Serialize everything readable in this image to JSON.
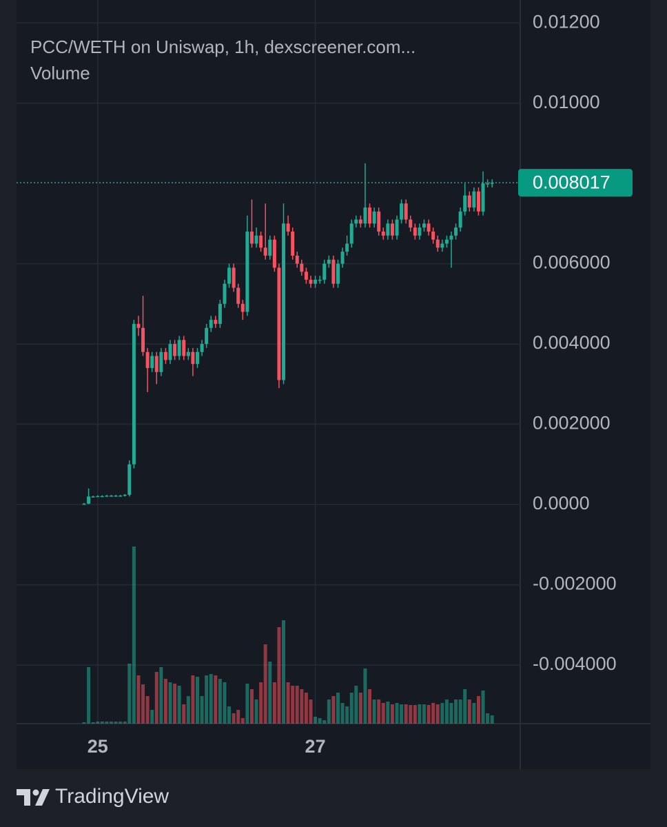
{
  "chart_data": {
    "type": "candlestick",
    "title": "PCC/WETH on Uniswap, 1h, dexscreener.com...",
    "subtitle": "Volume",
    "categories": [
      null,
      null,
      null,
      "25",
      null,
      null,
      null,
      null,
      null,
      null,
      null,
      null,
      null,
      null,
      null,
      null,
      null,
      null,
      null,
      null,
      null,
      null,
      null,
      null,
      null,
      null,
      null,
      null,
      null,
      null,
      null,
      null,
      null,
      null,
      null,
      null,
      null,
      null,
      null,
      null,
      null,
      null,
      null,
      null,
      null,
      null,
      null,
      null,
      null,
      null,
      null,
      "27",
      null,
      null,
      null,
      null,
      null,
      null,
      null,
      null,
      null,
      null,
      null,
      null,
      null,
      null,
      null,
      null,
      null,
      null,
      null,
      null,
      null,
      null,
      null,
      null,
      null,
      null,
      null,
      null,
      null,
      null,
      null,
      null,
      null,
      null,
      null,
      null,
      null,
      null,
      null
    ],
    "open": [
      2e-05,
      2e-05,
      0.0002,
      0.0002,
      0.00021,
      0.00021,
      0.00022,
      0.00022,
      0.00022,
      0.00022,
      0.00024,
      0.001,
      0.0045,
      0.0044,
      0.0038,
      0.0034,
      0.0037,
      0.0033,
      0.0038,
      0.0036,
      0.004,
      0.0037,
      0.0041,
      0.0037,
      0.0038,
      0.0035,
      0.0038,
      0.004,
      0.0044,
      0.0046,
      0.0045,
      0.005,
      0.0055,
      0.0059,
      0.0054,
      0.005,
      0.0048,
      0.0068,
      0.0065,
      0.0067,
      0.0064,
      0.0062,
      0.0066,
      0.0059,
      0.0031,
      0.007,
      0.0068,
      0.0062,
      0.006,
      0.0058,
      0.0056,
      0.0055,
      0.0056,
      0.0056,
      0.006,
      0.0061,
      0.0055,
      0.006,
      0.0063,
      0.0065,
      0.007,
      0.0071,
      0.007,
      0.0074,
      0.007,
      0.0073,
      0.0068,
      0.0067,
      0.007,
      0.0067,
      0.0071,
      0.0075,
      0.0071,
      0.0069,
      0.0067,
      0.0069,
      0.007,
      0.0068,
      0.0066,
      0.0064,
      0.0065,
      0.0066,
      0.0067,
      0.0069,
      0.0073,
      0.0077,
      0.0074,
      0.0078,
      0.0073,
      0.008,
      0.008
    ],
    "high": [
      4e-05,
      0.0004,
      0.00022,
      0.00023,
      0.00023,
      0.00024,
      0.00024,
      0.00024,
      0.00024,
      0.00026,
      0.0011,
      0.0046,
      0.0047,
      0.0052,
      0.0039,
      0.0038,
      0.0038,
      0.0039,
      0.0039,
      0.0041,
      0.0041,
      0.0042,
      0.0042,
      0.0039,
      0.0039,
      0.0039,
      0.0041,
      0.0045,
      0.0047,
      0.0047,
      0.0051,
      0.0056,
      0.006,
      0.006,
      0.0055,
      0.0051,
      0.0072,
      0.0076,
      0.0069,
      0.0068,
      0.0075,
      0.0067,
      0.0067,
      0.006,
      0.0075,
      0.0072,
      0.0069,
      0.0063,
      0.0061,
      0.0059,
      0.0057,
      0.0057,
      0.0057,
      0.0061,
      0.0062,
      0.0062,
      0.0061,
      0.0064,
      0.0067,
      0.0071,
      0.0072,
      0.0072,
      0.0085,
      0.0075,
      0.0074,
      0.0074,
      0.0069,
      0.0071,
      0.0071,
      0.0072,
      0.0076,
      0.0076,
      0.0072,
      0.007,
      0.007,
      0.0071,
      0.0071,
      0.0069,
      0.0067,
      0.0066,
      0.0067,
      0.0068,
      0.007,
      0.0074,
      0.008,
      0.0078,
      0.0079,
      0.0079,
      0.0083,
      0.0081,
      0.0081
    ],
    "low": [
      0,
      1e-05,
      0.00018,
      0.00019,
      0.00019,
      0.0002,
      0.0002,
      0.0002,
      0.0002,
      0.0002,
      0.0002,
      0.0009,
      0.0042,
      0.0037,
      0.0028,
      0.0033,
      0.003,
      0.0032,
      0.0035,
      0.0035,
      0.0036,
      0.0036,
      0.0036,
      0.0036,
      0.0032,
      0.0034,
      0.0037,
      0.0039,
      0.0043,
      0.0044,
      0.0044,
      0.0049,
      0.0054,
      0.0053,
      0.0049,
      0.0046,
      0.0047,
      0.0064,
      0.0064,
      0.0063,
      0.0061,
      0.0061,
      0.0058,
      0.0029,
      0.003,
      0.0067,
      0.0061,
      0.0059,
      0.0057,
      0.0055,
      0.0054,
      0.0054,
      0.0055,
      0.0055,
      0.0059,
      0.0054,
      0.0054,
      0.0059,
      0.0062,
      0.0064,
      0.0069,
      0.0069,
      0.0069,
      0.0069,
      0.0069,
      0.0067,
      0.0066,
      0.0066,
      0.0066,
      0.0066,
      0.007,
      0.007,
      0.0068,
      0.0066,
      0.0066,
      0.0068,
      0.0067,
      0.0065,
      0.0063,
      0.0063,
      0.0064,
      0.0059,
      0.0066,
      0.0068,
      0.0072,
      0.0073,
      0.0073,
      0.0072,
      0.0072,
      0.0079,
      0.0079
    ],
    "close": [
      2e-05,
      0.0002,
      0.0002,
      0.00021,
      0.00021,
      0.00022,
      0.00022,
      0.00022,
      0.00022,
      0.00024,
      0.001,
      0.0045,
      0.0044,
      0.0038,
      0.0034,
      0.0037,
      0.0033,
      0.0038,
      0.0036,
      0.004,
      0.0037,
      0.0041,
      0.0037,
      0.0038,
      0.0035,
      0.0038,
      0.004,
      0.0044,
      0.0046,
      0.0045,
      0.005,
      0.0055,
      0.0059,
      0.0054,
      0.005,
      0.0048,
      0.0068,
      0.0065,
      0.0067,
      0.0064,
      0.0062,
      0.0066,
      0.0059,
      0.0031,
      0.007,
      0.0068,
      0.0062,
      0.006,
      0.0058,
      0.0056,
      0.0055,
      0.0056,
      0.0056,
      0.006,
      0.0061,
      0.0055,
      0.006,
      0.0063,
      0.0065,
      0.007,
      0.0071,
      0.007,
      0.0074,
      0.007,
      0.0073,
      0.0068,
      0.0067,
      0.007,
      0.0067,
      0.0071,
      0.0075,
      0.0071,
      0.0069,
      0.0067,
      0.0069,
      0.007,
      0.0068,
      0.0066,
      0.0064,
      0.0065,
      0.0066,
      0.0067,
      0.0069,
      0.0073,
      0.0077,
      0.0074,
      0.0078,
      0.0073,
      0.008,
      0.008,
      0.008017
    ],
    "volume": [
      2,
      82,
      2,
      3,
      3,
      3,
      3,
      3,
      3,
      3,
      87,
      257,
      70,
      57,
      40,
      20,
      75,
      82,
      65,
      60,
      58,
      55,
      28,
      40,
      70,
      68,
      40,
      70,
      72,
      70,
      65,
      60,
      25,
      15,
      20,
      8,
      58,
      50,
      35,
      60,
      115,
      90,
      60,
      140,
      150,
      60,
      55,
      55,
      50,
      45,
      35,
      10,
      8,
      5,
      35,
      40,
      45,
      30,
      25,
      45,
      55,
      45,
      80,
      50,
      35,
      35,
      30,
      32,
      28,
      30,
      28,
      28,
      27,
      27,
      28,
      28,
      27,
      30,
      28,
      30,
      35,
      30,
      35,
      35,
      50,
      35,
      30,
      40,
      48,
      15,
      12
    ],
    "up_color": "#22ab94",
    "down_color": "#f7525f",
    "ylim": [
      -0.00546,
      0.01257
    ],
    "yticks": [
      {
        "value": 0.012,
        "label": "0.01200"
      },
      {
        "value": 0.01,
        "label": "0.01000"
      },
      {
        "value": 0.006,
        "label": "0.006000"
      },
      {
        "value": 0.004,
        "label": "0.004000"
      },
      {
        "value": 0.002,
        "label": "0.002000"
      },
      {
        "value": 0,
        "label": "0.0000"
      },
      {
        "value": -0.002,
        "label": "-0.002000"
      },
      {
        "value": -0.004,
        "label": "-0.004000"
      }
    ],
    "last_price": 0.008017,
    "grid": true
  },
  "footer": {
    "brand": "TradingView"
  }
}
